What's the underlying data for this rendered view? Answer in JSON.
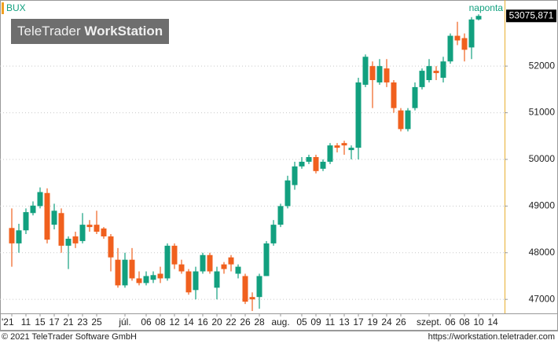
{
  "chart_data": {
    "type": "candlestick",
    "title": "BUX",
    "period": "naponta",
    "watermark_brand": "TeleTrader",
    "watermark_product": "WorkStation",
    "up_color": "#12a07f",
    "down_color": "#f0601e",
    "categories": [
      "'21",
      null,
      "11",
      null,
      "15",
      null,
      "17",
      null,
      "21",
      null,
      "23",
      null,
      "25",
      null,
      null,
      null,
      "júl.",
      null,
      null,
      "06",
      null,
      "08",
      null,
      "12",
      null,
      "14",
      null,
      "16",
      null,
      "20",
      null,
      "22",
      null,
      "26",
      null,
      "28",
      null,
      null,
      "aug.",
      null,
      null,
      "05",
      null,
      "09",
      null,
      "11",
      null,
      "13",
      null,
      "17",
      null,
      "19",
      null,
      "24",
      null,
      "26",
      null,
      null,
      null,
      "szept.",
      null,
      null,
      "06",
      null,
      "08",
      null,
      "10",
      null,
      "14"
    ],
    "open": [
      48530,
      48200,
      48480,
      48850,
      49000,
      49280,
      48600,
      48850,
      48150,
      48350,
      48250,
      48600,
      48600,
      48520,
      48350,
      47850,
      47300,
      47850,
      47450,
      47350,
      47420,
      47550,
      47450,
      48150,
      47750,
      47600,
      47200,
      47600,
      47950,
      47250,
      47750,
      47900,
      47550,
      47500,
      47050,
      47050,
      47500,
      48200,
      48600,
      49000,
      49450,
      49850,
      49950,
      50050,
      49800,
      49950,
      50300,
      50350,
      50200,
      50250,
      51600,
      52000,
      51650,
      51950,
      51650,
      51050,
      50650,
      51100,
      51550,
      51700,
      51900,
      51750,
      52100,
      52650,
      52600,
      52400,
      53000,
      null,
      null
    ],
    "high": [
      48950,
      48620,
      48950,
      49100,
      49400,
      49380,
      49050,
      48950,
      48350,
      48450,
      48850,
      48700,
      48900,
      48550,
      48400,
      48100,
      48000,
      48100,
      47600,
      47600,
      47600,
      47700,
      48200,
      48200,
      47850,
      47650,
      47700,
      48000,
      48000,
      47700,
      47800,
      47950,
      47750,
      47550,
      47150,
      47550,
      48250,
      48700,
      49050,
      49650,
      49950,
      50050,
      50100,
      50100,
      50000,
      50350,
      50350,
      50400,
      50300,
      51750,
      52250,
      52100,
      52150,
      52150,
      51700,
      51100,
      51100,
      51650,
      51950,
      52150,
      52000,
      52200,
      52700,
      52950,
      52700,
      53050,
      53110,
      null,
      null
    ],
    "low": [
      47700,
      48000,
      48400,
      48800,
      48950,
      48200,
      48500,
      48000,
      47650,
      48100,
      48200,
      48450,
      48400,
      48300,
      47600,
      47250,
      47250,
      47400,
      47300,
      47300,
      47350,
      47350,
      47400,
      47650,
      47550,
      47100,
      47000,
      47550,
      47550,
      47000,
      47550,
      47600,
      47450,
      46900,
      46750,
      46800,
      47500,
      48150,
      48550,
      48950,
      49350,
      49800,
      49900,
      49700,
      49750,
      49900,
      50150,
      50100,
      50000,
      50000,
      51550,
      51100,
      51600,
      51550,
      51000,
      50600,
      50600,
      51050,
      51500,
      51650,
      51700,
      51650,
      52050,
      52450,
      52100,
      52150,
      52980,
      null,
      null
    ],
    "close": [
      48200,
      48480,
      48870,
      49010,
      49300,
      48280,
      48900,
      48150,
      48300,
      48200,
      48600,
      48550,
      48450,
      48350,
      47900,
      47300,
      47850,
      47450,
      47350,
      47500,
      47520,
      47450,
      48150,
      47750,
      47600,
      47150,
      47600,
      47950,
      47600,
      47600,
      47650,
      47750,
      47700,
      46950,
      47000,
      47500,
      48200,
      48600,
      49000,
      49550,
      49850,
      49950,
      50050,
      49750,
      49950,
      50300,
      50250,
      50300,
      50250,
      51650,
      52200,
      51700,
      52000,
      51650,
      51100,
      50650,
      51050,
      51550,
      51900,
      52000,
      51850,
      52100,
      52650,
      52550,
      52350,
      53000,
      53075.871,
      null,
      null
    ],
    "last_price": {
      "value": 53075.871,
      "label": "53075,871"
    },
    "ylim": [
      46700,
      53400
    ],
    "yticks": [
      47000,
      48000,
      49000,
      50000,
      51000,
      52000
    ],
    "grid": true
  },
  "footer": {
    "copyright": "© 2021 TeleTrader Software GmbH",
    "url": "https://workstation.teletrader.com"
  }
}
